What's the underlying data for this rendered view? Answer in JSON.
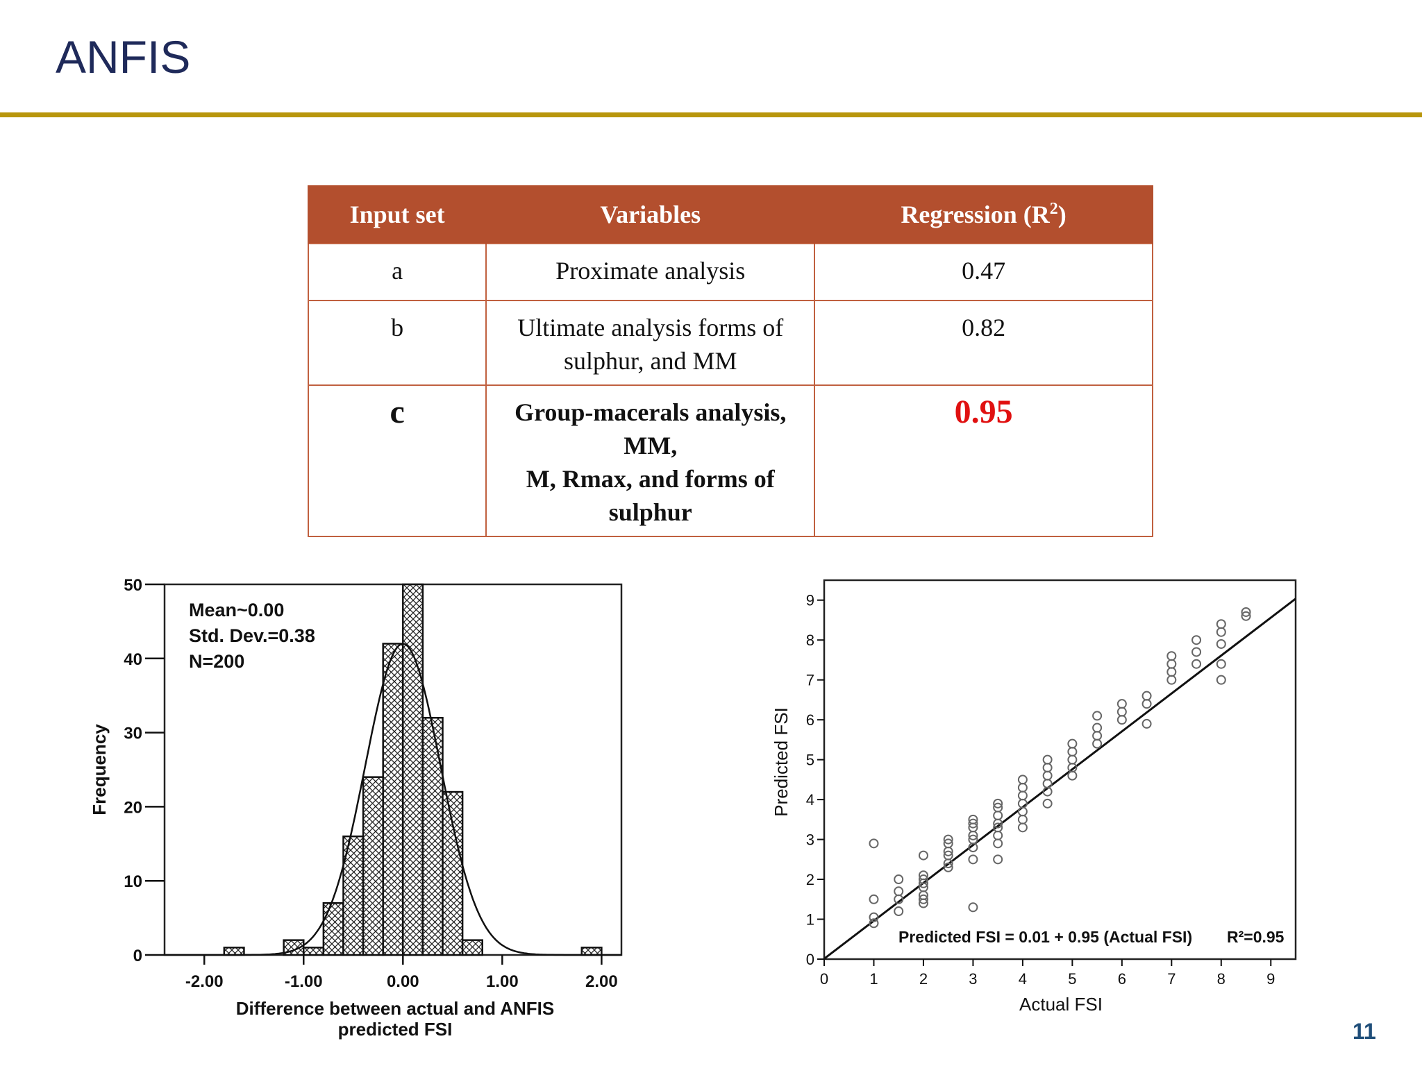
{
  "slide": {
    "title": "ANFIS",
    "page_number": "11",
    "rule_color": "#b8960c"
  },
  "table": {
    "headers": [
      "Input set",
      "Variables",
      "Regression (R",
      "2",
      ")"
    ],
    "rows": [
      {
        "set": "a",
        "variables": "Proximate analysis",
        "r2": "0.47"
      },
      {
        "set": "b",
        "variables_line1": "Ultimate analysis forms of",
        "variables_line2": "sulphur, and MM",
        "r2": "0.82"
      },
      {
        "set": "c",
        "variables_line1": "Group-macerals analysis, MM,",
        "variables_line2": "M, Rmax, and forms of sulphur",
        "r2": "0.95"
      }
    ],
    "header_color": "#b34f2e",
    "highlight_color": "#e01010"
  },
  "chart_data": [
    {
      "type": "bar",
      "subtype": "histogram",
      "xlabel_line1": "Difference between actual and ANFIS",
      "xlabel_line2": "predicted FSI",
      "ylabel": "Frequency",
      "xlim": [
        -2.4,
        2.2
      ],
      "ylim": [
        0,
        50
      ],
      "xticks": [
        "-2.00",
        "-1.00",
        "0.00",
        "1.00",
        "2.00"
      ],
      "xtick_values": [
        -2,
        -1,
        0,
        1,
        2
      ],
      "yticks": [
        0,
        10,
        20,
        30,
        40,
        50
      ],
      "bin_width": 0.2,
      "bins": [
        {
          "center": -1.7,
          "count": 1
        },
        {
          "center": -1.1,
          "count": 2
        },
        {
          "center": -0.9,
          "count": 1
        },
        {
          "center": -0.7,
          "count": 7
        },
        {
          "center": -0.5,
          "count": 16
        },
        {
          "center": -0.3,
          "count": 24
        },
        {
          "center": -0.1,
          "count": 42
        },
        {
          "center": 0.1,
          "count": 50
        },
        {
          "center": 0.3,
          "count": 32
        },
        {
          "center": 0.5,
          "count": 22
        },
        {
          "center": 0.7,
          "count": 2
        },
        {
          "center": 1.9,
          "count": 1
        }
      ],
      "normal_curve": {
        "mean": 0.0,
        "std": 0.38,
        "n": 200
      },
      "annotations": [
        "Mean~0.00",
        "Std. Dev.=0.38",
        "N=200"
      ]
    },
    {
      "type": "scatter",
      "xlabel": "Actual FSI",
      "ylabel": "Predicted FSI",
      "xlim": [
        0,
        9.5
      ],
      "ylim": [
        0,
        9.5
      ],
      "xticks": [
        0,
        1,
        2,
        3,
        4,
        5,
        6,
        7,
        8,
        9
      ],
      "yticks": [
        0,
        1,
        2,
        3,
        4,
        5,
        6,
        7,
        8,
        9
      ],
      "fit_line": {
        "intercept": 0.01,
        "slope": 0.95
      },
      "annotation": "Predicted FSI = 0.01 + 0.95 (Actual FSI)",
      "r2_label": "R²=0.95",
      "points": [
        [
          1,
          0.9
        ],
        [
          1,
          1.05
        ],
        [
          1,
          1.5
        ],
        [
          1,
          2.9
        ],
        [
          1.5,
          1.2
        ],
        [
          1.5,
          1.5
        ],
        [
          1.5,
          1.7
        ],
        [
          1.5,
          2.0
        ],
        [
          2,
          1.4
        ],
        [
          2,
          1.5
        ],
        [
          2,
          1.6
        ],
        [
          2,
          1.8
        ],
        [
          2,
          1.9
        ],
        [
          2,
          2.0
        ],
        [
          2,
          2.1
        ],
        [
          2,
          2.6
        ],
        [
          2.5,
          2.3
        ],
        [
          2.5,
          2.4
        ],
        [
          2.5,
          2.6
        ],
        [
          2.5,
          2.7
        ],
        [
          2.5,
          2.9
        ],
        [
          2.5,
          3.0
        ],
        [
          3,
          1.3
        ],
        [
          3,
          2.5
        ],
        [
          3,
          2.8
        ],
        [
          3,
          3.0
        ],
        [
          3,
          3.1
        ],
        [
          3,
          3.3
        ],
        [
          3,
          3.4
        ],
        [
          3,
          3.5
        ],
        [
          3.5,
          2.5
        ],
        [
          3.5,
          2.9
        ],
        [
          3.5,
          3.1
        ],
        [
          3.5,
          3.3
        ],
        [
          3.5,
          3.4
        ],
        [
          3.5,
          3.6
        ],
        [
          3.5,
          3.8
        ],
        [
          3.5,
          3.9
        ],
        [
          4,
          3.3
        ],
        [
          4,
          3.5
        ],
        [
          4,
          3.7
        ],
        [
          4,
          3.9
        ],
        [
          4,
          4.1
        ],
        [
          4,
          4.3
        ],
        [
          4,
          4.5
        ],
        [
          4.5,
          3.9
        ],
        [
          4.5,
          4.2
        ],
        [
          4.5,
          4.4
        ],
        [
          4.5,
          4.6
        ],
        [
          4.5,
          4.8
        ],
        [
          4.5,
          5.0
        ],
        [
          5,
          4.6
        ],
        [
          5,
          4.8
        ],
        [
          5,
          5.0
        ],
        [
          5,
          5.2
        ],
        [
          5,
          5.4
        ],
        [
          5.5,
          5.4
        ],
        [
          5.5,
          5.6
        ],
        [
          5.5,
          5.8
        ],
        [
          5.5,
          6.1
        ],
        [
          6,
          6.0
        ],
        [
          6,
          6.2
        ],
        [
          6,
          6.4
        ],
        [
          6.5,
          5.9
        ],
        [
          6.5,
          6.4
        ],
        [
          6.5,
          6.6
        ],
        [
          7,
          7.0
        ],
        [
          7,
          7.2
        ],
        [
          7,
          7.4
        ],
        [
          7,
          7.6
        ],
        [
          7.5,
          7.4
        ],
        [
          7.5,
          7.7
        ],
        [
          7.5,
          8.0
        ],
        [
          8,
          7.0
        ],
        [
          8,
          7.4
        ],
        [
          8,
          7.9
        ],
        [
          8,
          8.2
        ],
        [
          8,
          8.4
        ],
        [
          8.5,
          8.6
        ],
        [
          8.5,
          8.7
        ]
      ]
    }
  ]
}
